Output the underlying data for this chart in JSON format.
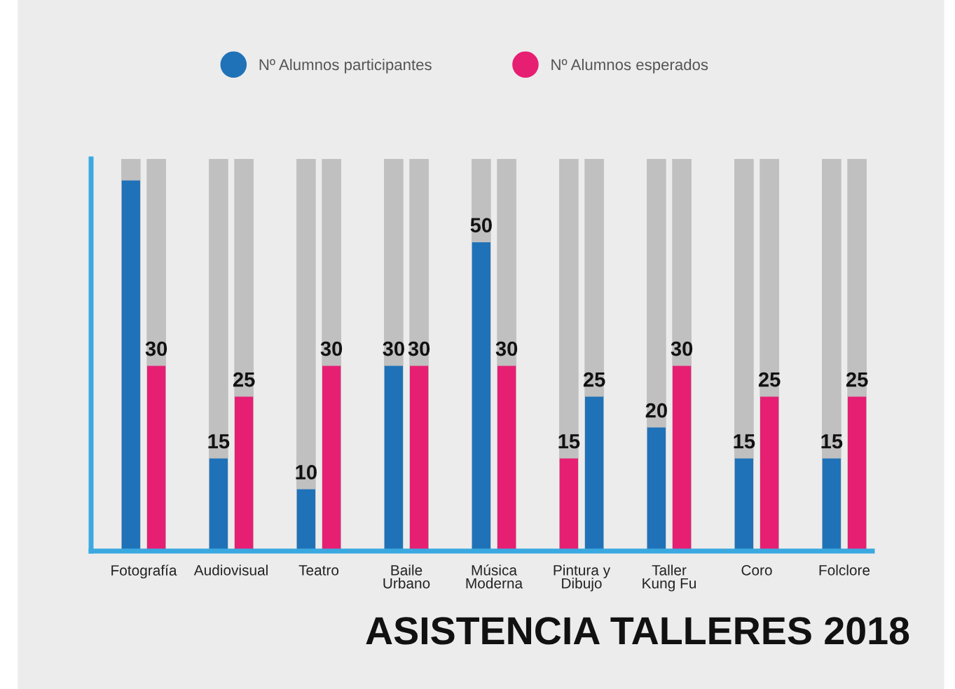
{
  "chart_data": {
    "type": "bar",
    "title": "ASISTENCIA TALLERES 2018",
    "categories": [
      "Fotografía",
      "Audiovisual",
      "Teatro",
      "Baile\nUrbano",
      "Música\nModerna",
      "Pintura y\nDibujo",
      "Taller\nKung Fu",
      "Coro",
      "Folclore"
    ],
    "series": [
      {
        "name": "Nº Alumnos participantes",
        "color": "#1f72b8",
        "colors": [
          "#1f72b8",
          "#1f72b8",
          "#1f72b8",
          "#1f72b8",
          "#1f72b8",
          "#e61f73",
          "#1f72b8",
          "#1f72b8",
          "#1f72b8"
        ],
        "values": [
          60,
          15,
          10,
          30,
          50,
          15,
          20,
          15,
          15
        ],
        "value_labels": [
          null,
          "15",
          "10",
          "30",
          "50",
          "15",
          "20",
          "15",
          "15"
        ]
      },
      {
        "name": "Nº Alumnos esperados",
        "color": "#e61f73",
        "colors": [
          "#e61f73",
          "#e61f73",
          "#e61f73",
          "#e61f73",
          "#e61f73",
          "#1f72b8",
          "#e61f73",
          "#e61f73",
          "#e61f73"
        ],
        "values": [
          30,
          25,
          30,
          30,
          30,
          25,
          30,
          25,
          25
        ],
        "value_labels": [
          "30",
          "25",
          "30",
          "30",
          "30",
          "25",
          "30",
          "25",
          "25"
        ]
      }
    ],
    "ylim": [
      0,
      63.5
    ],
    "tick_labels": "x",
    "legend": "top",
    "grid": false
  }
}
